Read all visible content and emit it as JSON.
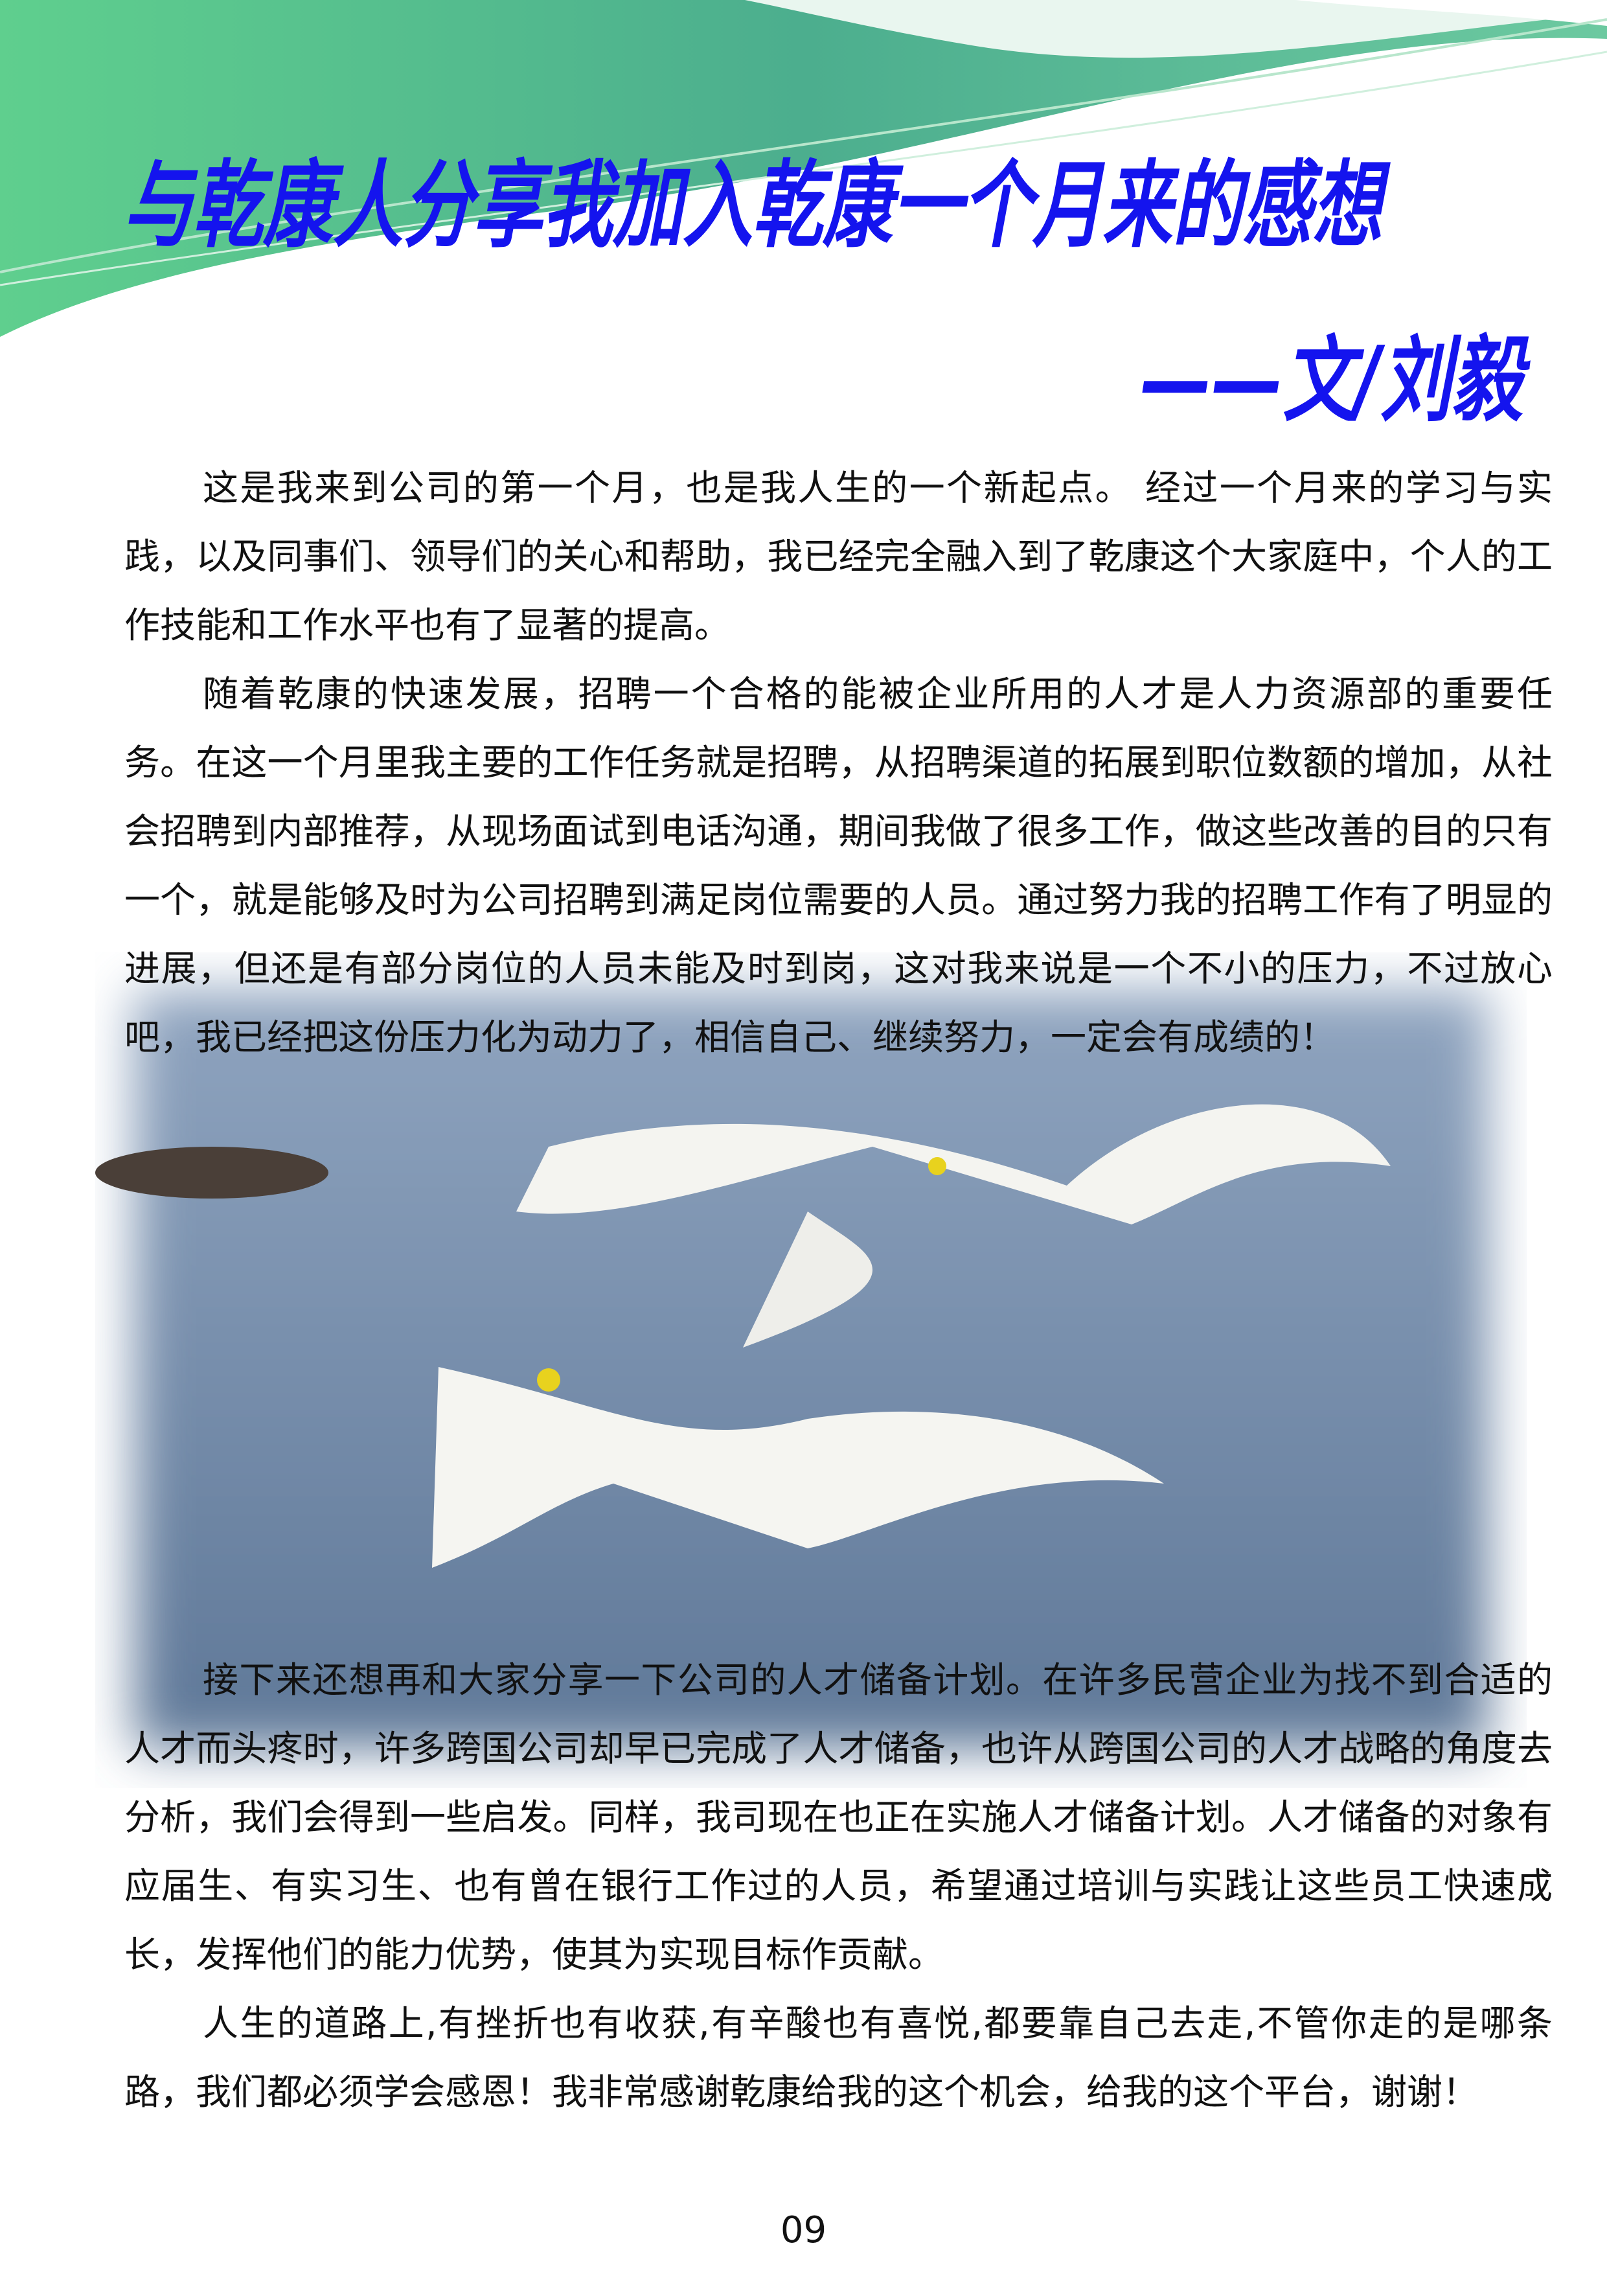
{
  "header": {
    "title": "与乾康人分享我加入乾康一个月来的感想",
    "author": "——文/刘毅"
  },
  "paragraphs": [
    "这是我来到公司的第一个月，也是我人生的一个新起点。 经过一个月来的学习与实践，以及同事们、领导们的关心和帮助，我已经完全融入到了乾康这个大家庭中，个人的工作技能和工作水平也有了显著的提高。",
    "随着乾康的快速发展，招聘一个合格的能被企业所用的人才是人力资源部的重要任务。在这一个月里我主要的工作任务就是招聘，从招聘渠道的拓展到职位数额的增加，从社会招聘到内部推荐，从现场面试到电话沟通，期间我做了很多工作，做这些改善的目的只有一个，就是能够及时为公司招聘到满足岗位需要的人员。通过努力我的招聘工作有了明显的进展，但还是有部分岗位的人员未能及时到岗，这对我来说是一个不小的压力，不过放心吧，我已经把这份压力化为动力了，相信自己、继续努力，一定会有成绩的！",
    "接下来还想再和大家分享一下公司的人才储备计划。在许多民营企业为找不到合适的人才而头疼时，许多跨国公司却早已完成了人才储备，也许从跨国公司的人才战略的角度去分析，我们会得到一些启发。同样，我司现在也正在实施人才储备计划。人才储备的对象有应届生、有实习生、也有曾在银行工作过的人员，希望通过培训与实践让这些员工快速成长，发挥他们的能力优势，使其为实现目标作贡献。",
    "人生的道路上,有挫折也有收获,有辛酸也有喜悦,都要靠自己去走,不管你走的是哪条路，我们都必须学会感恩！我非常感谢乾康给我的这个机会，给我的这个平台，谢谢！"
  ],
  "page_number": "09"
}
